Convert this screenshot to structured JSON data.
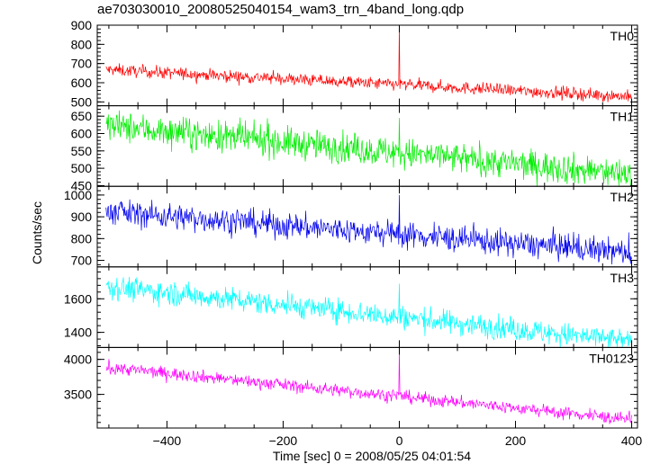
{
  "title": "ae703030010_20080525040154_wam3_trn_4band_long.qdp",
  "chart_data": {
    "type": "line",
    "title": "ae703030010_20080525040154_wam3_trn_4band_long.qdp",
    "xlabel": "Time [sec] 0 = 2008/05/25 04:01:54",
    "ylabel": "Counts/sec",
    "xlim": [
      -520,
      410
    ],
    "xticks": [
      -400,
      -200,
      0,
      200,
      400
    ],
    "x_start": -505,
    "x_end": 400,
    "sample_step": 1,
    "spike_x": 0,
    "shared_x": true,
    "series": [
      {
        "name": "TH0",
        "color": "#ff0000",
        "ylim": [
          480,
          900
        ],
        "yticks": [
          500,
          600,
          700,
          800,
          900
        ],
        "start": 668,
        "end": 528,
        "noise": 16,
        "spike_peak": 900
      },
      {
        "name": "TH1",
        "color": "#00ee00",
        "ylim": [
          448,
          680
        ],
        "yticks": [
          450,
          500,
          550,
          600,
          650
        ],
        "start": 622,
        "end": 482,
        "noise": 22,
        "spike_peak": 645
      },
      {
        "name": "TH2",
        "color": "#0000ee",
        "ylim": [
          670,
          1040
        ],
        "yticks": [
          700,
          800,
          900,
          1000
        ],
        "start": 925,
        "end": 735,
        "noise": 30,
        "spike_peak": 1000
      },
      {
        "name": "TH3",
        "color": "#00ffff",
        "ylim": [
          1310,
          1790
        ],
        "yticks": [
          1400,
          1600
        ],
        "start": 1675,
        "end": 1345,
        "noise": 35,
        "spike_peak": 1690
      },
      {
        "name": "TH0123",
        "color": "#ff00ff",
        "ylim": [
          3020,
          4170
        ],
        "yticks": [
          3500,
          4000
        ],
        "start": 3890,
        "end": 3140,
        "noise": 45,
        "spike_peak": 4130
      }
    ]
  }
}
